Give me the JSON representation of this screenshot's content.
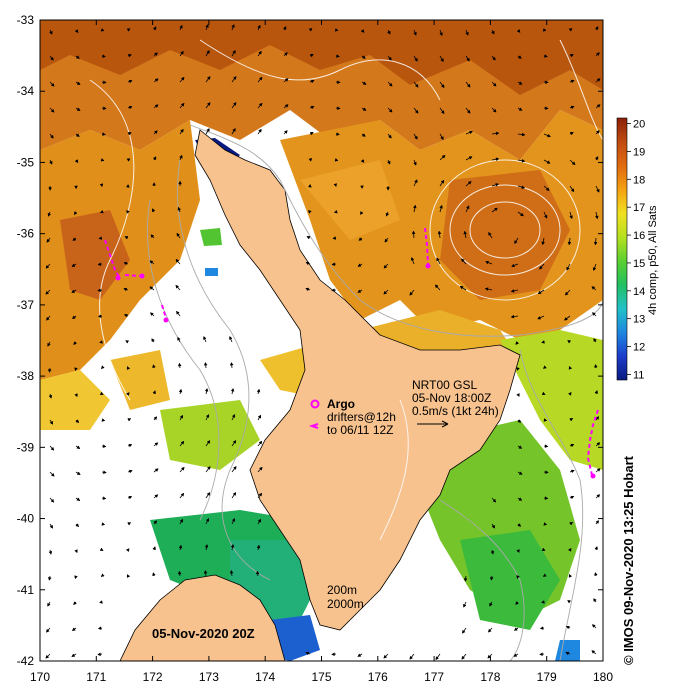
{
  "map": {
    "x_axis": {
      "ticks": [
        "170",
        "171",
        "172",
        "173",
        "174",
        "175",
        "176",
        "177",
        "178",
        "179",
        "180"
      ],
      "range": [
        170,
        180
      ]
    },
    "y_axis": {
      "ticks": [
        "-33",
        "-34",
        "-35",
        "-36",
        "-37",
        "-38",
        "-39",
        "-40",
        "-41",
        "-42"
      ],
      "range": [
        -42,
        -33
      ]
    },
    "colorbar": {
      "ticks": [
        "11",
        "12",
        "13",
        "14",
        "15",
        "16",
        "17",
        "18",
        "19",
        "20"
      ],
      "range": [
        10.8,
        20.2
      ],
      "label": "4h comp, p50, All Sats",
      "colors": [
        "#0b1a80",
        "#1c3ccc",
        "#1e88e0",
        "#22c0c8",
        "#22c060",
        "#5cd030",
        "#b6e020",
        "#f0e020",
        "#f4a010",
        "#e06a10",
        "#c04a10",
        "#8a2008"
      ]
    },
    "argo": {
      "title": "Argo",
      "line1": "drifters@12h",
      "line2": "to 06/11 12Z",
      "color": "#ff00ff"
    },
    "currents": {
      "line1": "NRT00 GSL",
      "line2": "05-Nov 18:00Z",
      "line3": "0.5m/s (1kt 24h)"
    },
    "depth": {
      "line1": "200m",
      "line2": "2000m"
    },
    "date_label": "05-Nov-2020 20Z",
    "credit": "© IMOS 09-Nov-2020 13:25 Hobart"
  }
}
